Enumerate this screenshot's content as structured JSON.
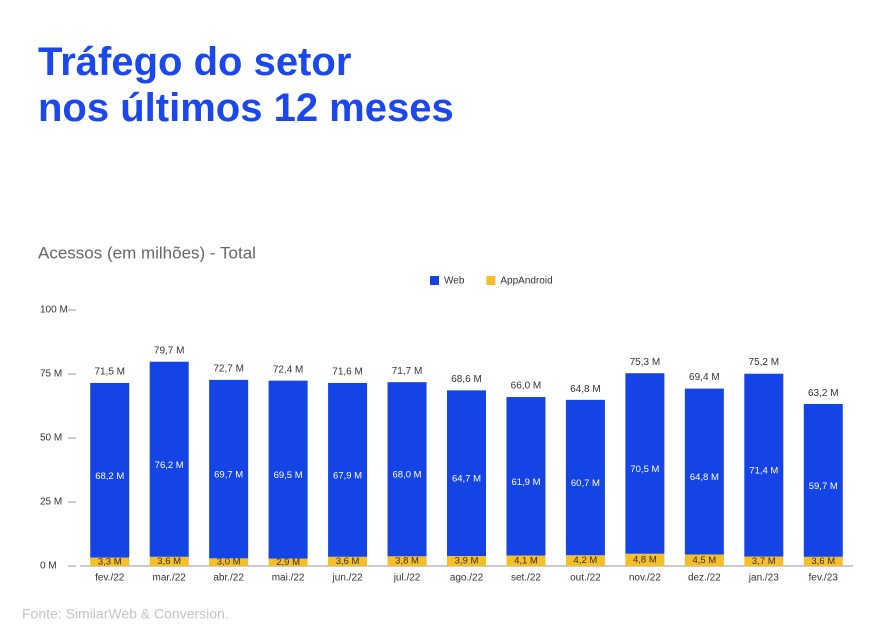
{
  "title": "Tráfego do setor\nnos últimos 12 meses",
  "source": "Fonte: SimilarWeb & Conversion.",
  "chart_data": {
    "type": "stacked_bar",
    "title": "Acessos (em milhões) - Total",
    "categories": [
      "fev./22",
      "mar./22",
      "abr./22",
      "mai./22",
      "jun./22",
      "jul./22",
      "ago./22",
      "set./22",
      "out./22",
      "nov./22",
      "dez./22",
      "jan./23",
      "fev./23"
    ],
    "series": [
      {
        "name": "AppAndroid",
        "color": "#f5bf2a",
        "values": [
          3.3,
          3.6,
          3.0,
          2.9,
          3.6,
          3.8,
          3.9,
          4.1,
          4.2,
          4.8,
          4.5,
          3.7,
          3.6
        ],
        "value_labels": [
          "3,3 M",
          "3,6 M",
          "3,0 M",
          "2,9 M",
          "3,6 M",
          "3,8 M",
          "3,9 M",
          "4,1 M",
          "4,2 M",
          "4,8 M",
          "4,5 M",
          "3,7 M",
          "3,6 M"
        ]
      },
      {
        "name": "Web",
        "color": "#1443e6",
        "values": [
          68.2,
          76.2,
          69.7,
          69.5,
          67.9,
          68.0,
          64.7,
          61.9,
          60.7,
          70.5,
          64.8,
          71.4,
          59.7
        ],
        "value_labels": [
          "68,2 M",
          "76,2 M",
          "69,7 M",
          "69,5 M",
          "67,9 M",
          "68,0 M",
          "64,7 M",
          "61,9 M",
          "60,7 M",
          "70,5 M",
          "64,8 M",
          "71,4 M",
          "59,7 M"
        ]
      }
    ],
    "totals": {
      "values": [
        71.5,
        79.7,
        72.7,
        72.4,
        71.6,
        71.7,
        68.6,
        66.0,
        64.8,
        75.3,
        69.4,
        75.2,
        63.2
      ],
      "value_labels": [
        "71,5 M",
        "79,7 M",
        "72,7 M",
        "72,4 M",
        "71,6 M",
        "71,7 M",
        "68,6 M",
        "66,0 M",
        "64,8 M",
        "75,3 M",
        "69,4 M",
        "75,2 M",
        "63,2 M"
      ]
    },
    "ylim": [
      0,
      100
    ],
    "yticks": [
      {
        "value": 0,
        "label": "0 M"
      },
      {
        "value": 25,
        "label": "25 M"
      },
      {
        "value": 50,
        "label": "50 M"
      },
      {
        "value": 75,
        "label": "75 M"
      },
      {
        "value": 100,
        "label": "100 M"
      }
    ],
    "grid": false,
    "legend": "top"
  }
}
